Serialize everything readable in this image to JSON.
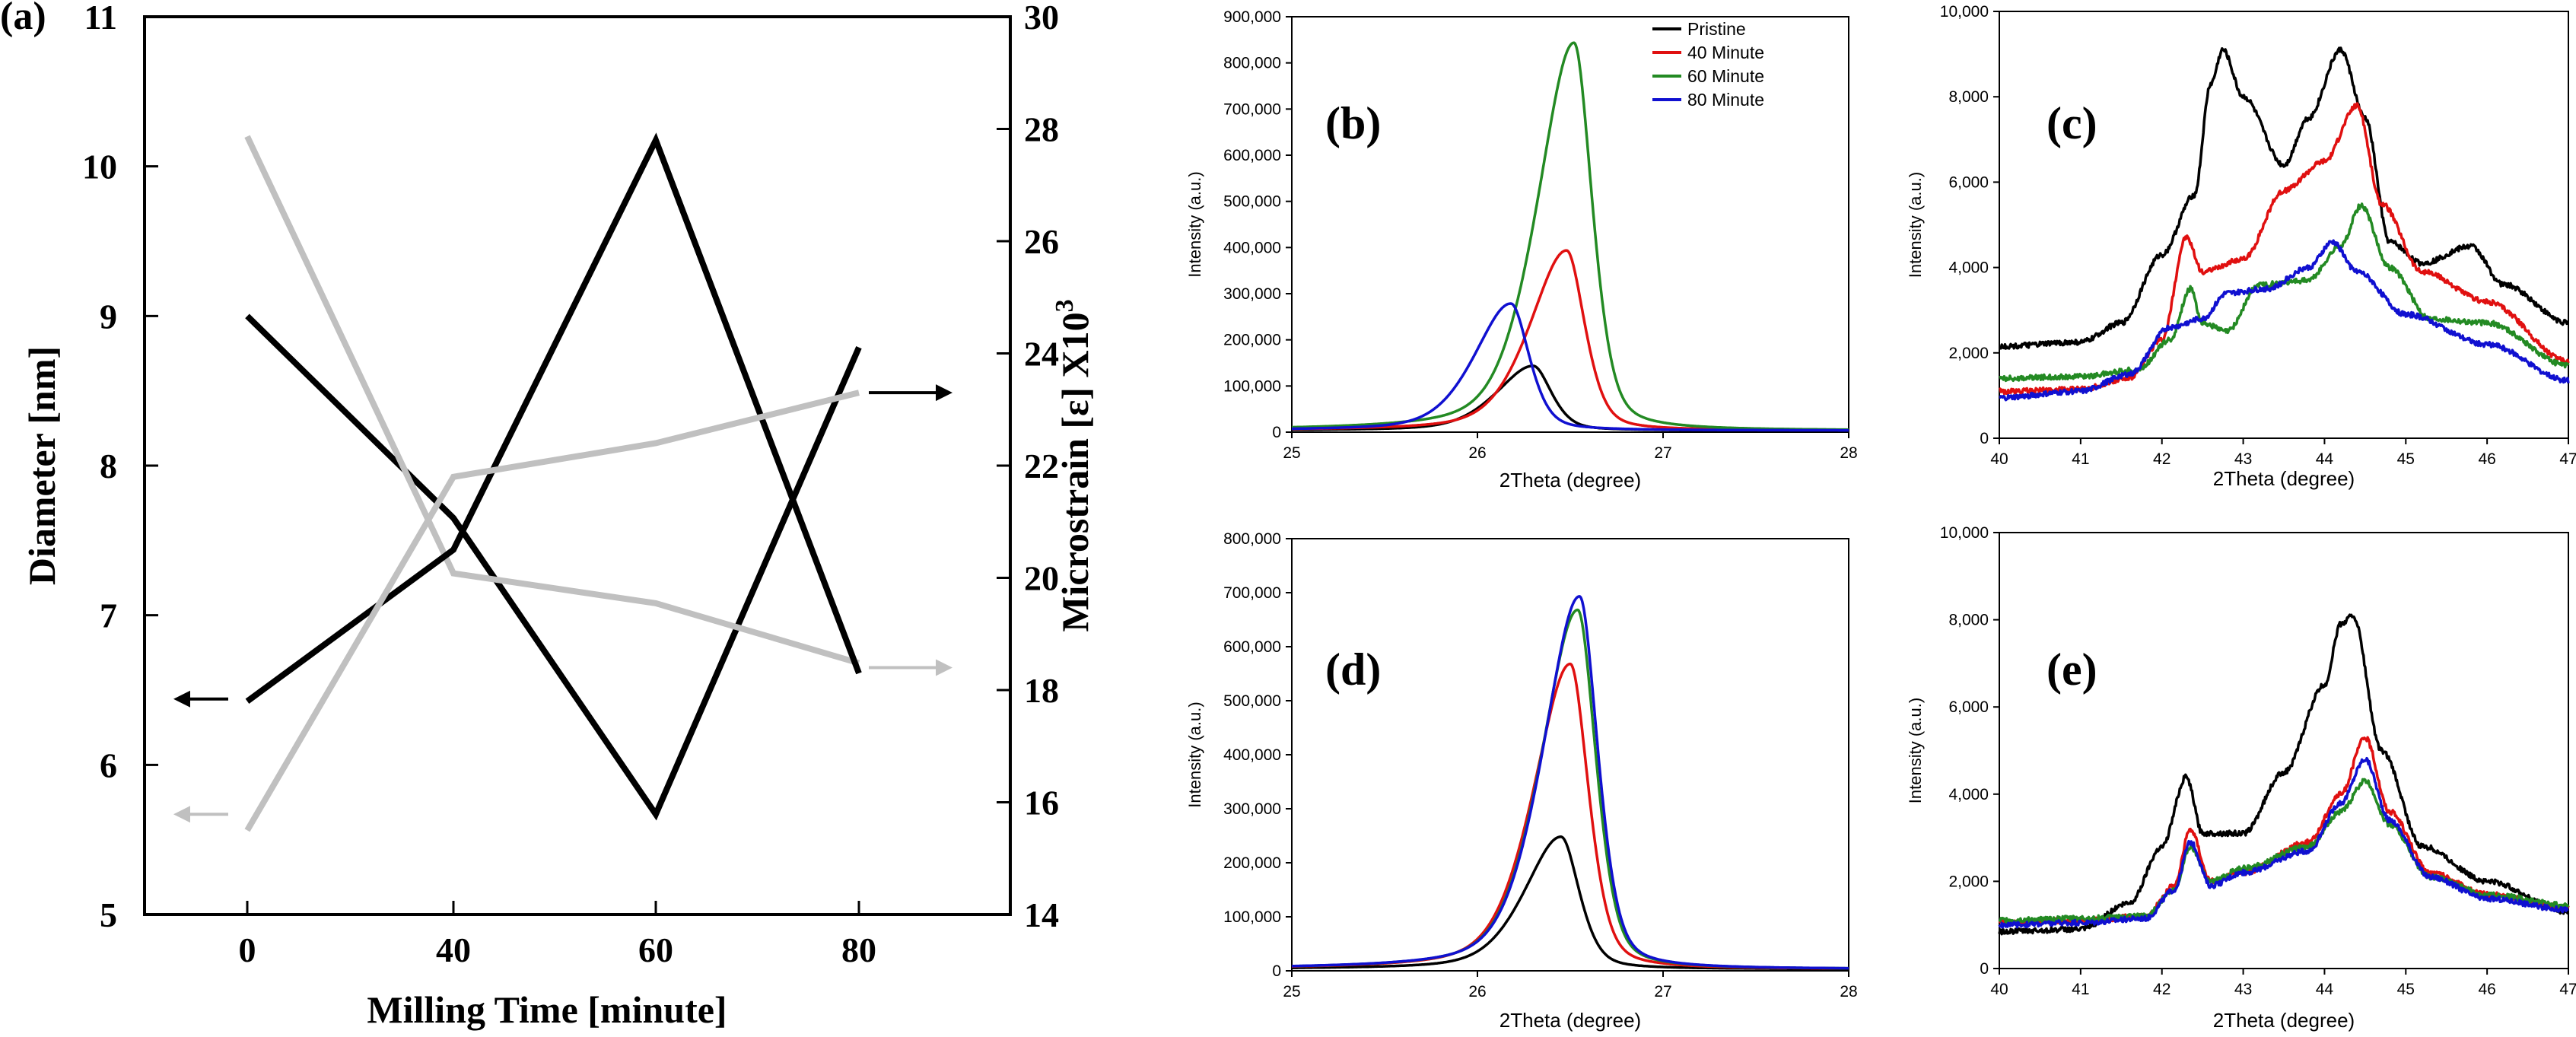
{
  "chart_data": [
    {
      "id": "a",
      "type": "line",
      "panel_label": "(a)",
      "xlabel": "Milling Time [minute]",
      "ylabel_left": "Diameter [nm]",
      "ylabel_right_main": "Microstrain [ε] X10",
      "ylabel_right_sup": "3",
      "categories": [
        "0",
        "40",
        "60",
        "80"
      ],
      "ylim_left": [
        5,
        11
      ],
      "ylim_right": [
        14,
        30
      ],
      "yticks_left": [
        5,
        6,
        7,
        8,
        9,
        10,
        11
      ],
      "yticks_right": [
        14,
        16,
        18,
        20,
        22,
        24,
        26,
        28,
        30
      ],
      "series": [
        {
          "axis": "left",
          "color": "#000000",
          "values": [
            9.0,
            7.65,
            5.67,
            8.79
          ]
        },
        {
          "axis": "left",
          "color": "#c0c0c0",
          "values": [
            10.2,
            7.28,
            7.08,
            6.68
          ]
        },
        {
          "axis": "right",
          "color": "#000000",
          "values": [
            17.8,
            20.5,
            27.8,
            18.3
          ]
        },
        {
          "axis": "right",
          "color": "#c0c0c0",
          "values": [
            15.5,
            21.8,
            22.4,
            23.3
          ]
        }
      ],
      "arrows": [
        {
          "axis": "left",
          "value": 6.44,
          "direction": "left",
          "color": "#000000"
        },
        {
          "axis": "left",
          "value": 5.67,
          "direction": "left",
          "color": "#c0c0c0"
        },
        {
          "axis": "right",
          "value": 23.3,
          "direction": "right",
          "color": "#000000"
        },
        {
          "axis": "right",
          "value": 18.4,
          "direction": "right",
          "color": "#c0c0c0"
        }
      ]
    },
    {
      "id": "b",
      "type": "line",
      "panel_label": "(b)",
      "xlabel": "2Theta (degree)",
      "ylabel": "Intensity (a.u.)",
      "xlim": [
        25,
        28
      ],
      "ylim": [
        0,
        900000
      ],
      "xticks": [
        "25",
        "26",
        "27",
        "28"
      ],
      "yticks": [
        "0",
        "100,000",
        "200,000",
        "300,000",
        "400,000",
        "500,000",
        "600,000",
        "700,000",
        "800,000",
        "900,000"
      ],
      "legend": {
        "position": "top-right",
        "entries": [
          {
            "name": "Pristine",
            "color": "#000000"
          },
          {
            "name": "40 Minute",
            "color": "#e01010"
          },
          {
            "name": "60 Minute",
            "color": "#238a23"
          },
          {
            "name": "80 Minute",
            "color": "#1010d0"
          }
        ]
      },
      "series": [
        {
          "color": "#000000",
          "peak": {
            "x": 26.3,
            "y": 140000
          }
        },
        {
          "color": "#e01010",
          "peak": {
            "x": 26.48,
            "y": 390000
          }
        },
        {
          "color": "#238a23",
          "peak": {
            "x": 26.52,
            "y": 840000
          }
        },
        {
          "color": "#1010d0",
          "peak": {
            "x": 26.18,
            "y": 275000
          }
        }
      ]
    },
    {
      "id": "c",
      "type": "line",
      "panel_label": "(c)",
      "xlabel": "2Theta (degree)",
      "ylabel": "Intensity (a.u.)",
      "xlim": [
        40,
        47
      ],
      "ylim": [
        0,
        10000
      ],
      "xticks": [
        "40",
        "41",
        "42",
        "43",
        "44",
        "45",
        "46",
        "47"
      ],
      "yticks": [
        "0",
        "2,000",
        "4,000",
        "6,000",
        "8,000",
        "10,000"
      ],
      "series": [
        {
          "color": "#000000",
          "points": [
            [
              40,
              2150
            ],
            [
              41,
              2250
            ],
            [
              41.5,
              2700
            ],
            [
              42,
              4300
            ],
            [
              42.4,
              5700
            ],
            [
              42.6,
              8300
            ],
            [
              42.75,
              9100
            ],
            [
              43,
              8000
            ],
            [
              43.5,
              6400
            ],
            [
              43.8,
              7500
            ],
            [
              44.2,
              9100
            ],
            [
              44.5,
              7500
            ],
            [
              44.8,
              4600
            ],
            [
              45.2,
              4100
            ],
            [
              45.8,
              4500
            ],
            [
              46.2,
              3600
            ],
            [
              47,
              2700
            ]
          ]
        },
        {
          "color": "#e01010",
          "points": [
            [
              40,
              1100
            ],
            [
              41,
              1150
            ],
            [
              41.6,
              1400
            ],
            [
              42,
              2300
            ],
            [
              42.3,
              4700
            ],
            [
              42.5,
              3900
            ],
            [
              43,
              4200
            ],
            [
              43.5,
              5800
            ],
            [
              44,
              6500
            ],
            [
              44.4,
              7800
            ],
            [
              44.7,
              5500
            ],
            [
              45.2,
              3900
            ],
            [
              46,
              3200
            ],
            [
              47,
              1800
            ]
          ]
        },
        {
          "color": "#238a23",
          "points": [
            [
              40,
              1400
            ],
            [
              41,
              1450
            ],
            [
              41.7,
              1600
            ],
            [
              42.1,
              2300
            ],
            [
              42.35,
              3500
            ],
            [
              42.5,
              2700
            ],
            [
              42.8,
              2500
            ],
            [
              43.2,
              3600
            ],
            [
              43.8,
              3700
            ],
            [
              44.2,
              4500
            ],
            [
              44.45,
              5450
            ],
            [
              44.8,
              4000
            ],
            [
              45.3,
              2800
            ],
            [
              46,
              2700
            ],
            [
              47,
              1700
            ]
          ]
        },
        {
          "color": "#1010d0",
          "points": [
            [
              40,
              950
            ],
            [
              41,
              1100
            ],
            [
              41.6,
              1500
            ],
            [
              42.1,
              2600
            ],
            [
              42.5,
              2800
            ],
            [
              42.8,
              3400
            ],
            [
              43.3,
              3500
            ],
            [
              43.8,
              4000
            ],
            [
              44.1,
              4600
            ],
            [
              44.4,
              3900
            ],
            [
              45,
              2900
            ],
            [
              46,
              2200
            ],
            [
              47,
              1350
            ]
          ]
        }
      ]
    },
    {
      "id": "d",
      "type": "line",
      "panel_label": "(d)",
      "xlabel": "2Theta (degree)",
      "ylabel": "Intensity (a.u.)",
      "xlim": [
        25,
        28
      ],
      "ylim": [
        0,
        800000
      ],
      "xticks": [
        "25",
        "26",
        "27",
        "28"
      ],
      "yticks": [
        "0",
        "100,000",
        "200,000",
        "300,000",
        "400,000",
        "500,000",
        "600,000",
        "700,000",
        "800,000"
      ],
      "series": [
        {
          "color": "#000000",
          "peak": {
            "x": 26.45,
            "y": 245000
          }
        },
        {
          "color": "#e01010",
          "peak": {
            "x": 26.5,
            "y": 565000
          }
        },
        {
          "color": "#238a23",
          "peak": {
            "x": 26.54,
            "y": 665000
          }
        },
        {
          "color": "#1010d0",
          "peak": {
            "x": 26.55,
            "y": 690000
          }
        }
      ]
    },
    {
      "id": "e",
      "type": "line",
      "panel_label": "(e)",
      "xlabel": "2Theta (degree)",
      "ylabel": "Intensity (a.u.)",
      "xlim": [
        40,
        47
      ],
      "ylim": [
        0,
        10000
      ],
      "xticks": [
        "40",
        "41",
        "42",
        "43",
        "44",
        "45",
        "46",
        "47"
      ],
      "yticks": [
        "0",
        "2,000",
        "4,000",
        "6,000",
        "8,000",
        "10,000"
      ],
      "series": [
        {
          "color": "#000000",
          "points": [
            [
              40,
              850
            ],
            [
              41,
              900
            ],
            [
              41.6,
              1500
            ],
            [
              42,
              2800
            ],
            [
              42.3,
              4400
            ],
            [
              42.5,
              3100
            ],
            [
              43,
              3100
            ],
            [
              43.5,
              4500
            ],
            [
              44,
              6500
            ],
            [
              44.2,
              7900
            ],
            [
              44.35,
              8100
            ],
            [
              44.7,
              5000
            ],
            [
              45.2,
              2800
            ],
            [
              46,
              2000
            ],
            [
              47,
              1300
            ]
          ]
        },
        {
          "color": "#e01010",
          "points": [
            [
              40,
              1050
            ],
            [
              41,
              1100
            ],
            [
              41.8,
              1200
            ],
            [
              42.15,
              1900
            ],
            [
              42.35,
              3200
            ],
            [
              42.6,
              2000
            ],
            [
              43,
              2200
            ],
            [
              43.8,
              2900
            ],
            [
              44.2,
              4000
            ],
            [
              44.5,
              5300
            ],
            [
              44.8,
              3600
            ],
            [
              45.3,
              2200
            ],
            [
              46,
              1700
            ],
            [
              47,
              1400
            ]
          ]
        },
        {
          "color": "#238a23",
          "points": [
            [
              40,
              1100
            ],
            [
              41,
              1150
            ],
            [
              41.8,
              1200
            ],
            [
              42.15,
              1800
            ],
            [
              42.35,
              2800
            ],
            [
              42.6,
              2000
            ],
            [
              43,
              2300
            ],
            [
              43.8,
              2800
            ],
            [
              44.2,
              3600
            ],
            [
              44.5,
              4300
            ],
            [
              44.8,
              3300
            ],
            [
              45.3,
              2100
            ],
            [
              46,
              1700
            ],
            [
              47,
              1450
            ]
          ]
        },
        {
          "color": "#1010d0",
          "points": [
            [
              40,
              1000
            ],
            [
              41,
              1050
            ],
            [
              41.8,
              1150
            ],
            [
              42.15,
              1800
            ],
            [
              42.35,
              2900
            ],
            [
              42.6,
              1900
            ],
            [
              43,
              2200
            ],
            [
              43.8,
              2700
            ],
            [
              44.2,
              3800
            ],
            [
              44.5,
              4800
            ],
            [
              44.8,
              3400
            ],
            [
              45.3,
              2100
            ],
            [
              46,
              1600
            ],
            [
              47,
              1350
            ]
          ]
        }
      ]
    }
  ]
}
